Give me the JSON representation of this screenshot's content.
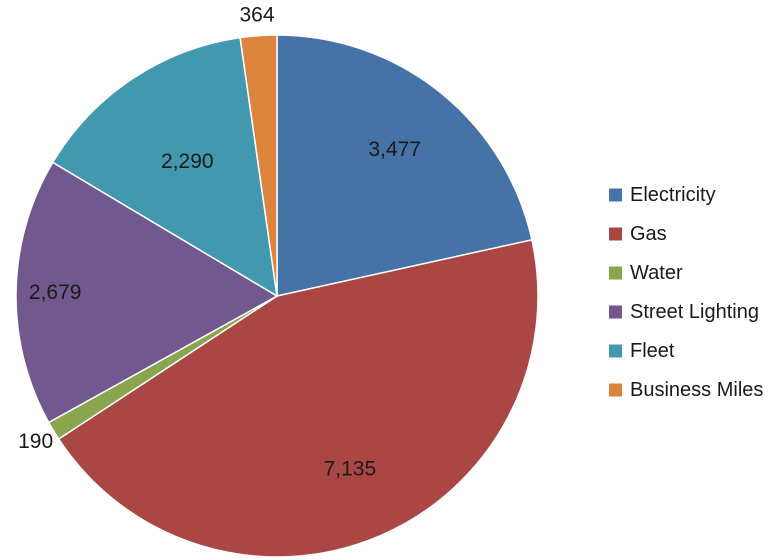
{
  "chart_data": {
    "type": "pie",
    "title": "",
    "categories": [
      "Electricity",
      "Gas",
      "Water",
      "Street Lighting",
      "Fleet",
      "Business Miles"
    ],
    "values": [
      3477,
      7135,
      190,
      2679,
      2290,
      364
    ],
    "value_labels": [
      "3,477",
      "7,135",
      "190",
      "2,679",
      "2,290",
      "364"
    ],
    "colors": [
      "#4572A7",
      "#AA4643",
      "#89A54E",
      "#71588F",
      "#4198AF",
      "#DB843D"
    ],
    "start_angle": "12 o'clock",
    "direction": "clockwise",
    "legend": {
      "placement": "right",
      "entries": [
        "Electricity",
        "Gas",
        "Water",
        "Street Lighting",
        "Fleet",
        "Business Miles"
      ]
    }
  }
}
